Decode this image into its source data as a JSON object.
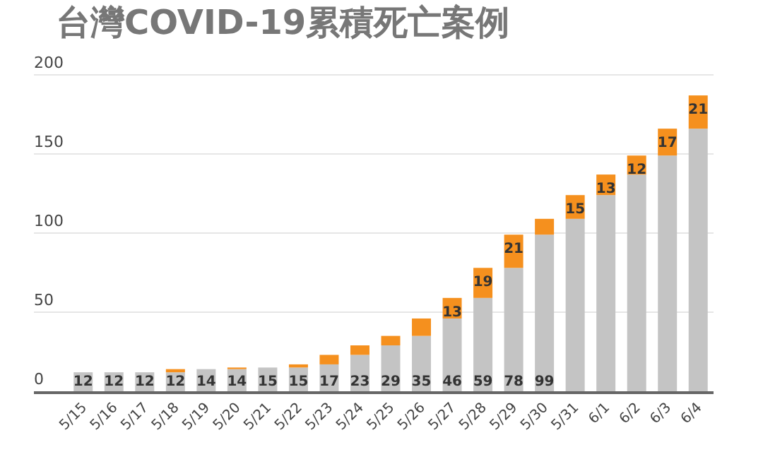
{
  "chart_data": {
    "type": "bar",
    "title": "台灣COVID-19累積死亡案例",
    "categories": [
      "5/15",
      "5/16",
      "5/17",
      "5/18",
      "5/19",
      "5/20",
      "5/21",
      "5/22",
      "5/23",
      "5/24",
      "5/25",
      "5/26",
      "5/27",
      "5/28",
      "5/29",
      "5/30",
      "5/31",
      "6/1",
      "6/2",
      "6/3",
      "6/4"
    ],
    "stacked": true,
    "series": [
      {
        "color": "#c4c4c4",
        "values": [
          12,
          12,
          12,
          12,
          14,
          14,
          15,
          15,
          17,
          23,
          29,
          35,
          46,
          59,
          78,
          99,
          109,
          124,
          137,
          149,
          166
        ],
        "value_labels": [
          "12",
          "12",
          "12",
          "12",
          "14",
          "14",
          "15",
          "15",
          "17",
          "23",
          "29",
          "35",
          "46",
          "59",
          "78",
          "99",
          null,
          null,
          null,
          null,
          null
        ]
      },
      {
        "color": "#f5901e",
        "values": [
          0,
          0,
          0,
          2,
          0,
          1,
          0,
          2,
          6,
          6,
          6,
          11,
          13,
          19,
          21,
          10,
          15,
          13,
          12,
          17,
          21
        ],
        "value_labels": [
          null,
          null,
          null,
          null,
          null,
          null,
          null,
          null,
          null,
          null,
          null,
          null,
          "13",
          "19",
          "21",
          null,
          "15",
          "13",
          "12",
          "17",
          "21"
        ]
      }
    ],
    "ylim": [
      0,
      200
    ],
    "yticks": [
      0,
      50,
      100,
      150,
      200
    ],
    "grid": "y"
  }
}
